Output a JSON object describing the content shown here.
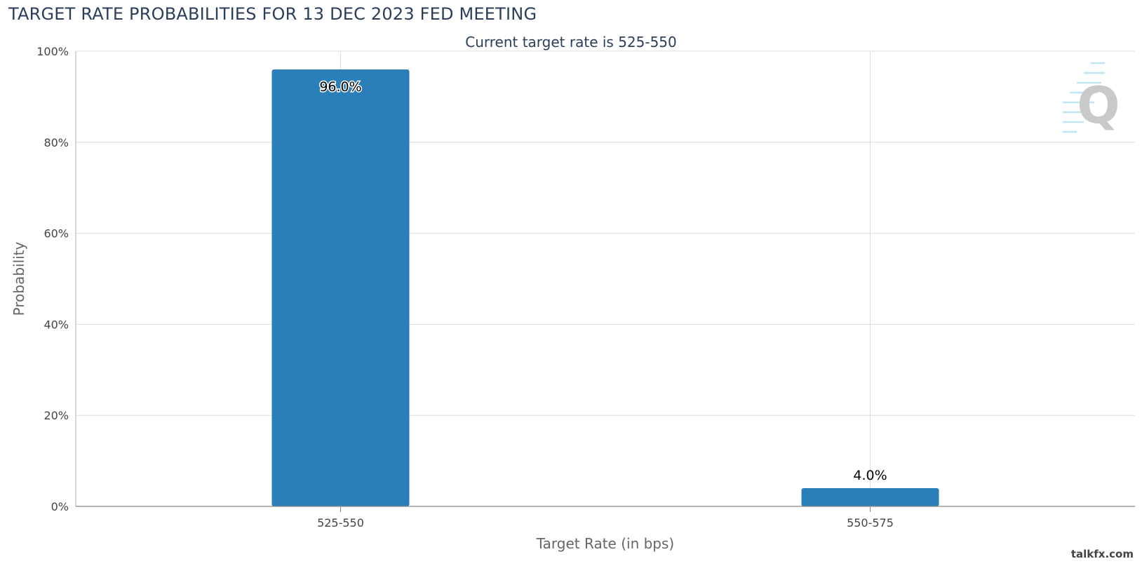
{
  "header": {
    "title": "TARGET RATE PROBABILITIES FOR 13 DEC 2023 FED MEETING",
    "subtitle": "Current target rate is 525-550"
  },
  "watermark": "talkfx.com",
  "logo": {
    "icon": "cme-fedwatch-q-logo",
    "letter": "Q"
  },
  "chart_data": {
    "type": "bar",
    "title": "TARGET RATE PROBABILITIES FOR 13 DEC 2023 FED MEETING",
    "subtitle": "Current target rate is 525-550",
    "xlabel": "Target Rate (in bps)",
    "ylabel": "Probability",
    "categories": [
      "525-550",
      "550-575"
    ],
    "values": [
      96.0,
      4.0
    ],
    "data_labels": [
      "96.0%",
      "4.0%"
    ],
    "ylim": [
      0,
      100
    ],
    "yticks": [
      0,
      20,
      40,
      60,
      80,
      100
    ],
    "ytick_labels": [
      "0%",
      "20%",
      "40%",
      "60%",
      "80%",
      "100%"
    ],
    "grid": true,
    "bar_color": "#2a7fb8"
  }
}
